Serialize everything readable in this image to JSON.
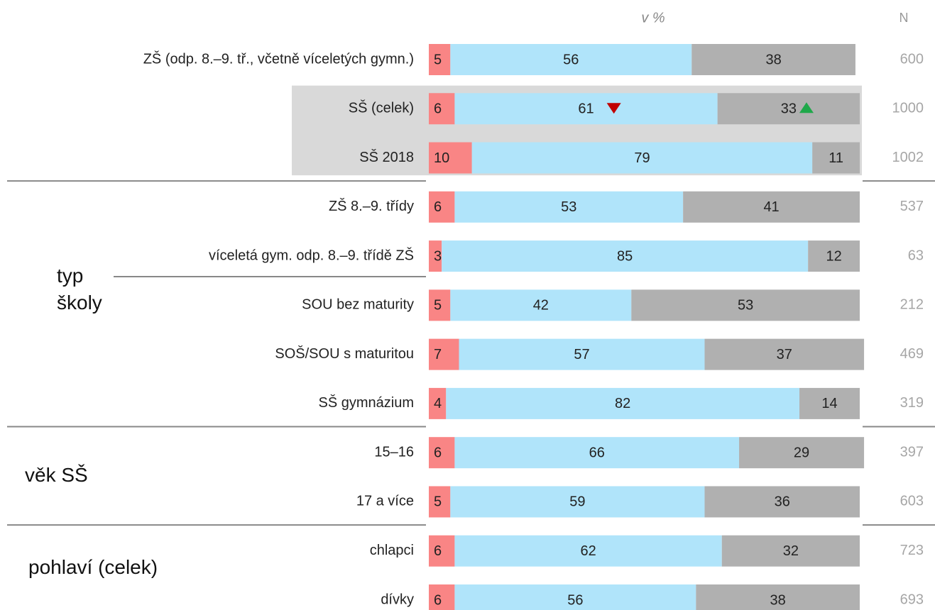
{
  "chart_data": {
    "type": "stacked-bar",
    "header": "v %",
    "n_header": "N",
    "categories": [
      "ZŠ (odp. 8.–9. tř., včetně víceletých gymn.)",
      "SŠ (celek)",
      "SŠ 2018",
      "ZŠ 8.–9. třídy",
      "víceletá gym. odp. 8.–9. třídě ZŠ",
      "SOU bez maturity",
      "SOŠ/SOU s maturitou",
      "SŠ gymnázium",
      "15–16",
      "17 a více",
      "chlapci",
      "dívky"
    ],
    "series": [
      {
        "color": "#f98585",
        "values": [
          5,
          6,
          10,
          6,
          3,
          5,
          7,
          4,
          6,
          5,
          6,
          6
        ]
      },
      {
        "color": "#b0e4fa",
        "values": [
          56,
          61,
          79,
          53,
          85,
          42,
          57,
          82,
          66,
          59,
          62,
          56
        ]
      },
      {
        "color": "#b0b0b0",
        "values": [
          38,
          33,
          11,
          41,
          12,
          53,
          37,
          14,
          29,
          36,
          32,
          38
        ]
      }
    ],
    "n": [
      600,
      1000,
      1002,
      537,
      63,
      212,
      469,
      319,
      397,
      603,
      723,
      693
    ],
    "xlim": [
      0,
      100
    ],
    "highlight_rows": [
      1,
      2
    ],
    "groups": [
      {
        "label": "typ školy",
        "rows": [
          3,
          7
        ]
      },
      {
        "label": "věk SŠ",
        "rows": [
          8,
          9
        ]
      },
      {
        "label": "pohlaví (celek)",
        "rows": [
          10,
          11
        ]
      }
    ],
    "markers": [
      {
        "row": 1,
        "series": 1,
        "direction": "down",
        "color": "#c00000"
      },
      {
        "row": 1,
        "series": 2,
        "direction": "up",
        "color": "#1fa84a"
      }
    ]
  }
}
